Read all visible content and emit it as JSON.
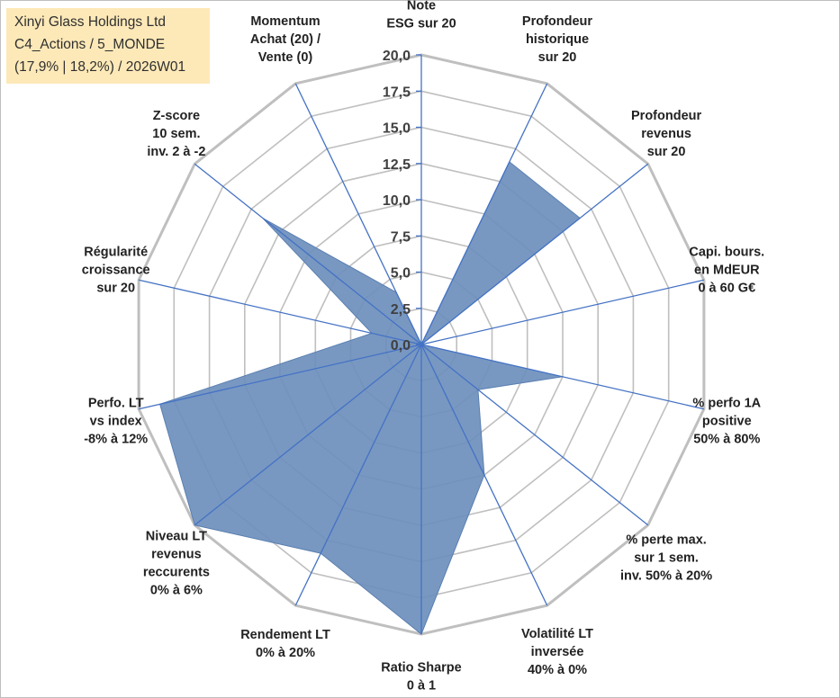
{
  "header": {
    "company": "Xinyi Glass Holdings Ltd",
    "classification": "C4_Actions / 5_MONDE",
    "details": "(17,9% | 18,2%) / 2026W01"
  },
  "chart_data": {
    "type": "radar",
    "rmax": 20,
    "ticks": [
      "0,0",
      "2,5",
      "5,0",
      "7,5",
      "10,0",
      "12,5",
      "15,0",
      "17,5",
      "20,0"
    ],
    "gridlines": true,
    "fill_color": "#6c8fbd",
    "axis_color": "#4472c4",
    "grid_color": "#bfbfbf",
    "categories": [
      {
        "lines": [
          "Note",
          "ESG sur 20"
        ]
      },
      {
        "lines": [
          "Profondeur",
          "historique",
          "sur 20"
        ]
      },
      {
        "lines": [
          "Profondeur",
          "revenus",
          "sur 20"
        ]
      },
      {
        "lines": [
          "Capi. bours.",
          "en MdEUR",
          "0 à 60 G€"
        ]
      },
      {
        "lines": [
          "% perfo 1A",
          "positive",
          "50% à 80%"
        ]
      },
      {
        "lines": [
          "% perte max.",
          "sur 1 sem.",
          "inv. 50% à 20%"
        ]
      },
      {
        "lines": [
          "Volatilité LT",
          "inversée",
          "40% à 0%"
        ]
      },
      {
        "lines": [
          "Ratio Sharpe",
          "0 à 1"
        ]
      },
      {
        "lines": [
          "Rendement LT",
          "0% à 20%"
        ]
      },
      {
        "lines": [
          "Niveau LT",
          "revenus",
          "reccurents",
          "0% à 6%"
        ]
      },
      {
        "lines": [
          "Perfo. LT",
          "vs index",
          "-8% à 12%"
        ]
      },
      {
        "lines": [
          "Régularité",
          "croissance",
          "sur 20"
        ]
      },
      {
        "lines": [
          "Z-score",
          "10 sem.",
          "inv. 2 à -2"
        ]
      },
      {
        "lines": [
          "Momentum",
          "Achat (20) /",
          "Vente (0)"
        ]
      }
    ],
    "values": [
      0,
      14,
      14,
      0,
      10,
      5,
      10,
      20,
      16,
      20,
      18.5,
      3.5,
      14,
      4
    ]
  }
}
